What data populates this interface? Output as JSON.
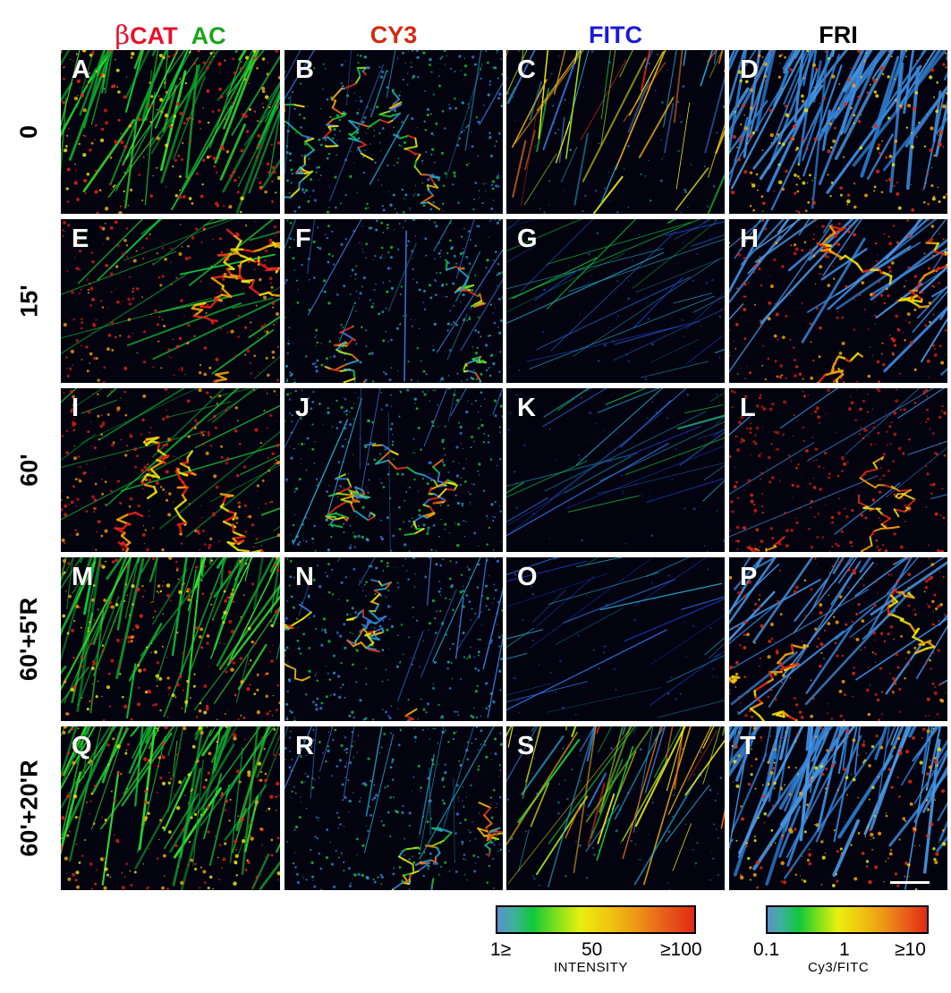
{
  "columns": {
    "c1_part1": "β",
    "c1_part2": "CAT",
    "c1_part3": "AC",
    "c2": "CY3",
    "c3": "FITC",
    "c4": "FRI"
  },
  "rows": [
    "0",
    "15'",
    "60'",
    "60'+5'R",
    "60'+20'R"
  ],
  "panels": [
    "A",
    "B",
    "C",
    "D",
    "E",
    "F",
    "G",
    "H",
    "I",
    "J",
    "K",
    "L",
    "M",
    "N",
    "O",
    "P",
    "Q",
    "R",
    "S",
    "T"
  ],
  "colors": {
    "beta_cat": "#e8102a",
    "ac": "#1aa51a",
    "cy3": "#d42a10",
    "fitc": "#1a1ad8",
    "fri": "#000000"
  },
  "intensity_bar": {
    "ticks": [
      "1≥",
      "50",
      "≥100"
    ],
    "label": "INTENSITY"
  },
  "ratio_bar": {
    "ticks": [
      "0.1",
      "1",
      "≥10"
    ],
    "label": "Cy3/FITC"
  }
}
